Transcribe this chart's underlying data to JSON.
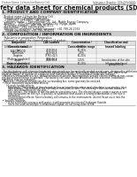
{
  "header_left": "Product Name: Lithium Ion Battery Cell",
  "header_right_line1": "Substance Number: SDS-009-00015",
  "header_right_line2": "Established / Revision: Dec.7.2010",
  "title": "Safety data sheet for chemical products (SDS)",
  "section1_title": "1. PRODUCT AND COMPANY IDENTIFICATION",
  "section1_lines": [
    " · Product name: Lithium Ion Battery Cell",
    " · Product code: Cylindrical-type cell",
    "     (18650SU, 18Y18650, 18Y18650A)",
    " · Company name:    Sanyo Electric Co., Ltd., Mobile Energy Company",
    " · Address:    2001 Kamiyashiro, Sumoto City, Hyogo, Japan",
    " · Telephone number:   +81-799-26-4111",
    " · Fax number:  +81-799-26-4120",
    " · Emergency telephone number (daytime): +81-799-26-2062",
    "     (Night and holiday): +81-799-26-4101"
  ],
  "section2_title": "2. COMPOSITION / INFORMATION ON INGREDIENTS",
  "section2_sub1": " · Substance or preparation: Preparation",
  "section2_sub2": " · Information about the chemical nature of product:",
  "col_labels": [
    "Component\n(Generic name)",
    "CAS number",
    "Concentration /\nConcentration range",
    "Classification and\nhazard labeling"
  ],
  "table_rows": [
    [
      "Lithium nickel cobaltate\n(LiNiCo0.2O2)",
      "-",
      "30-60%",
      ""
    ],
    [
      "Iron",
      "7439-89-6",
      "10-25%",
      ""
    ],
    [
      "Aluminum",
      "7429-90-5",
      "2-5%",
      ""
    ],
    [
      "Graphite\n(Flake or graphite-I)\n(Artificial graphite-II)",
      "77762-42-5\n7782-44-2",
      "10-20%",
      ""
    ],
    [
      "Copper",
      "7440-50-8",
      "5-15%",
      "Sensitization of the skin\ngroup R43,2"
    ],
    [
      "Organic electrolyte",
      "-",
      "10-20%",
      "Inflammable liquid"
    ]
  ],
  "section3_title": "3. HAZARDS IDENTIFICATION",
  "section3_para1": "  For this battery cell, chemical materials are stored in a hermetically-sealed metal case, designed to withstand",
  "section3_para2": "temperatures in practical-use-conditions during normal use. As a result, during normal use, there is no",
  "section3_para3": "physical danger of ignition or explosion and therefore danger of hazardous materials leakage.",
  "section3_para4": "  However, if exposed to a fire, added mechanical shocks, decomposed, vented electro-chemical may cause",
  "section3_para5": "the gas release sensor to operate. The battery cell case will be breached at fire-extreme, hazardous",
  "section3_para6": "materials may be released.",
  "section3_para7": "  Moreover, if heated strongly by the surrounding fire, some gas may be emitted.",
  "s3_bullet1": " • Most important hazard and effects:",
  "s3_human": "    Human health effects:",
  "s3_h1": "      Inhalation: The release of the electrolyte has an anesthesia action and stimulates a respiratory tract.",
  "s3_h2": "      Skin contact: The release of the electrolyte stimulates a skin. The electrolyte skin contact causes a",
  "s3_h3": "      sore and stimulation on the skin.",
  "s3_h4": "      Eye contact: The release of the electrolyte stimulates eyes. The electrolyte eye contact causes a sore",
  "s3_h5": "      and stimulation on the eye. Especially, a substance that causes a strong inflammation of the eye is",
  "s3_h6": "      contained.",
  "s3_h7": "      Environmental effects: Since a battery cell remains in the environment, do not throw out it into the",
  "s3_h8": "      environment.",
  "s3_bullet2": " • Specific hazards:",
  "s3_s1": "      If the electrolyte contacts with water, it will generate detrimental hydrogen fluoride.",
  "s3_s2": "      Since the used electrolyte is inflammable liquid, do not bring close to fire.",
  "footer_line": "",
  "bg": "#ffffff",
  "gray_header": "#cccccc",
  "table_header_bg": "#e0e0e0",
  "border_color": "#999999"
}
